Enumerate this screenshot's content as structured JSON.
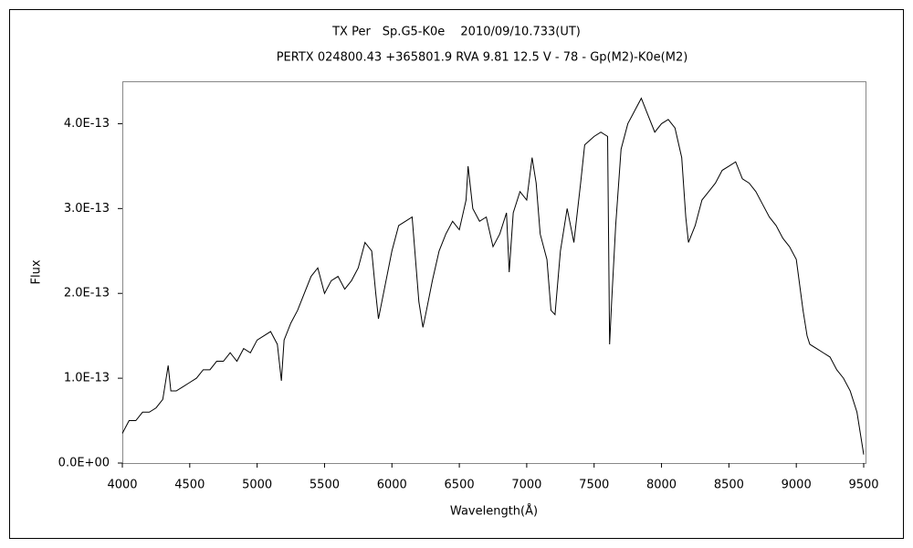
{
  "chart_data": {
    "type": "line",
    "title": "TX Per　Sp.G5-K0e　 2010/09/10.733(UT)",
    "subtitle": "PERTX 024800.43 +365801.9 RVA 9.81 12.5 V - 78 - Gp(M2)-K0e(M2)",
    "x_label": "Wavelength(Å)",
    "y_label": "Flux",
    "color": "#000000",
    "grid": false,
    "xlim": [
      4000,
      9500
    ],
    "ylim": [
      0,
      4.5e-13
    ],
    "xticks": [
      4000,
      4500,
      5000,
      5500,
      6000,
      6500,
      7000,
      7500,
      8000,
      8500,
      9000,
      9500
    ],
    "yticks": [
      {
        "value": 0,
        "label": "0.0E+00"
      },
      {
        "value": 1e-13,
        "label": "1.0E-13"
      },
      {
        "value": 2e-13,
        "label": "2.0E-13"
      },
      {
        "value": 3e-13,
        "label": "3.0E-13"
      },
      {
        "value": 4e-13,
        "label": "4.0E-13"
      }
    ],
    "x": [
      4000,
      4050,
      4100,
      4150,
      4200,
      4250,
      4300,
      4340,
      4360,
      4400,
      4450,
      4500,
      4550,
      4600,
      4650,
      4700,
      4750,
      4800,
      4850,
      4900,
      4950,
      5000,
      5050,
      5100,
      5150,
      5180,
      5200,
      5250,
      5300,
      5350,
      5400,
      5450,
      5500,
      5550,
      5600,
      5650,
      5700,
      5750,
      5800,
      5850,
      5880,
      5900,
      5950,
      6000,
      6050,
      6100,
      6150,
      6180,
      6200,
      6230,
      6250,
      6300,
      6350,
      6400,
      6450,
      6500,
      6550,
      6565,
      6600,
      6650,
      6700,
      6750,
      6800,
      6850,
      6870,
      6900,
      6950,
      7000,
      7040,
      7070,
      7100,
      7150,
      7180,
      7210,
      7250,
      7300,
      7350,
      7400,
      7430,
      7500,
      7550,
      7600,
      7615,
      7630,
      7660,
      7700,
      7750,
      7800,
      7850,
      7900,
      7950,
      8000,
      8050,
      8100,
      8150,
      8180,
      8200,
      8250,
      8300,
      8350,
      8400,
      8450,
      8500,
      8550,
      8600,
      8650,
      8700,
      8750,
      8800,
      8850,
      8900,
      8950,
      9000,
      9050,
      9080,
      9100,
      9150,
      9200,
      9250,
      9300,
      9350,
      9400,
      9450,
      9480,
      9500
    ],
    "values": [
      3.5e-14,
      5e-14,
      5e-14,
      6e-14,
      6e-14,
      6.5e-14,
      7.5e-14,
      1.15e-13,
      8.5e-14,
      8.5e-14,
      9e-14,
      9.5e-14,
      1e-13,
      1.1e-13,
      1.1e-13,
      1.2e-13,
      1.2e-13,
      1.3e-13,
      1.2e-13,
      1.35e-13,
      1.3e-13,
      1.45e-13,
      1.5e-13,
      1.55e-13,
      1.4e-13,
      9.7e-14,
      1.45e-13,
      1.65e-13,
      1.8e-13,
      2e-13,
      2.2e-13,
      2.3e-13,
      2e-13,
      2.15e-13,
      2.2e-13,
      2.05e-13,
      2.15e-13,
      2.3e-13,
      2.6e-13,
      2.5e-13,
      2e-13,
      1.7e-13,
      2.1e-13,
      2.5e-13,
      2.8e-13,
      2.85e-13,
      2.9e-13,
      2.3e-13,
      1.9e-13,
      1.6e-13,
      1.75e-13,
      2.15e-13,
      2.5e-13,
      2.7e-13,
      2.85e-13,
      2.75e-13,
      3.1e-13,
      3.5e-13,
      3e-13,
      2.85e-13,
      2.9e-13,
      2.55e-13,
      2.7e-13,
      2.95e-13,
      2.25e-13,
      2.95e-13,
      3.2e-13,
      3.1e-13,
      3.6e-13,
      3.3e-13,
      2.7e-13,
      2.4e-13,
      1.8e-13,
      1.75e-13,
      2.5e-13,
      3e-13,
      2.6e-13,
      3.3e-13,
      3.75e-13,
      3.85e-13,
      3.9e-13,
      3.85e-13,
      1.4e-13,
      1.9e-13,
      2.8e-13,
      3.7e-13,
      4e-13,
      4.15e-13,
      4.3e-13,
      4.1e-13,
      3.9e-13,
      4e-13,
      4.05e-13,
      3.95e-13,
      3.6e-13,
      2.9e-13,
      2.6e-13,
      2.8e-13,
      3.1e-13,
      3.2e-13,
      3.3e-13,
      3.45e-13,
      3.5e-13,
      3.55e-13,
      3.35e-13,
      3.3e-13,
      3.2e-13,
      3.05e-13,
      2.9e-13,
      2.8e-13,
      2.65e-13,
      2.55e-13,
      2.4e-13,
      1.8e-13,
      1.5e-13,
      1.4e-13,
      1.35e-13,
      1.3e-13,
      1.25e-13,
      1.1e-13,
      1e-13,
      8.5e-14,
      6e-14,
      3e-14,
      1e-14
    ]
  }
}
